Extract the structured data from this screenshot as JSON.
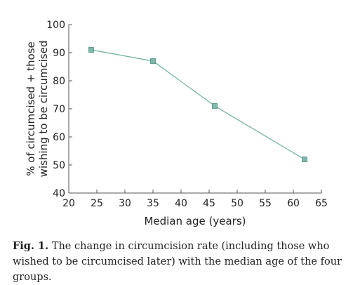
{
  "chart_data": {
    "type": "line",
    "title": "",
    "xlabel": "Median age (years)",
    "ylabel_lines": [
      "% of circumcised + those",
      "wishing to be circumcised"
    ],
    "xlim": [
      20,
      65
    ],
    "ylim": [
      40,
      100
    ],
    "xticks": [
      20,
      25,
      30,
      35,
      40,
      45,
      50,
      55,
      60,
      65
    ],
    "yticks": [
      40,
      50,
      60,
      70,
      80,
      90,
      100
    ],
    "grid": false,
    "series": [
      {
        "x": [
          24,
          35,
          46,
          62
        ],
        "y": [
          91,
          87,
          71,
          52
        ]
      }
    ],
    "colors": {
      "line": "#6db0a0",
      "marker": "#7cb8ab",
      "marker_edge": "#4d8f80",
      "axis": "#555555"
    }
  },
  "caption": {
    "label": "Fig. 1.",
    "text": " The change in circumcision rate (including those who wished to be circumcised later) with the median age of the four groups."
  }
}
